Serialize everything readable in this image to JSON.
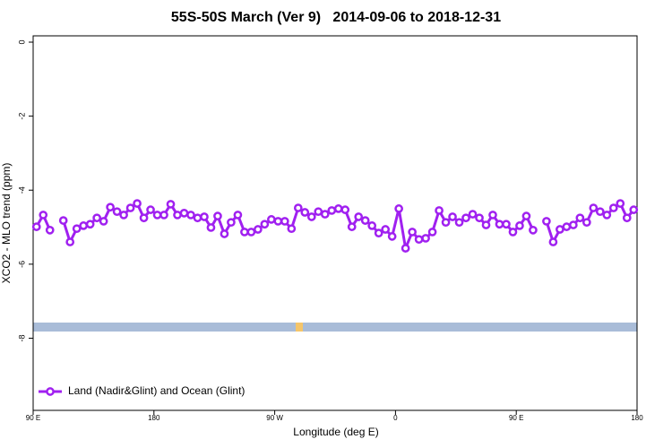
{
  "chart_data": {
    "type": "line",
    "title": "55S-50S March (Ver 9)   2014-09-06 to 2018-12-31",
    "x_label": "Longitude (deg E)",
    "y_label": "XCO2 - MLO trend (ppm)",
    "xlim": [
      90,
      540
    ],
    "ylim": [
      -9.95,
      0.17
    ],
    "xticks": [
      {
        "value": 90,
        "label": "90 E"
      },
      180,
      {
        "value": 270,
        "label": "90 W"
      },
      {
        "value": 360,
        "label": "0"
      },
      {
        "value": 450,
        "label": "90 E"
      },
      {
        "value": 540,
        "label": "180"
      }
    ],
    "yticks": [
      0,
      -2,
      -4,
      -6,
      -8
    ],
    "legend": "bottom-left",
    "x": [
      92.5,
      97.5,
      102.5,
      107.5,
      112.5,
      117.5,
      122.5,
      127.5,
      132.5,
      137.5,
      142.5,
      147.5,
      152.5,
      157.5,
      162.5,
      167.5,
      172.5,
      177.5,
      182.5,
      187.5,
      192.5,
      197.5,
      202.5,
      207.5,
      212.5,
      217.5,
      222.5,
      227.5,
      232.5,
      237.5,
      242.5,
      247.5,
      252.5,
      257.5,
      262.5,
      267.5,
      272.5,
      277.5,
      282.5,
      287.5,
      292.5,
      297.5,
      302.5,
      307.5,
      312.5,
      317.5,
      322.5,
      327.5,
      332.5,
      337.5,
      342.5,
      347.5,
      352.5,
      357.5,
      362.5,
      367.5,
      372.5,
      377.5,
      382.5,
      387.5,
      392.5,
      397.5,
      402.5,
      407.5,
      412.5,
      417.5,
      422.5,
      427.5,
      432.5,
      437.5,
      442.5,
      447.5,
      452.5,
      457.5,
      462.5,
      467.5,
      472.5,
      477.5,
      482.5,
      487.5,
      492.5,
      497.5,
      502.5,
      507.5,
      512.5,
      517.5,
      522.5,
      527.5,
      532.5,
      537.5
    ],
    "series": [
      {
        "name": "Land (Nadir&Glint) and Ocean (Glint)",
        "color": "#a020f0",
        "values": [
          -4.99,
          -4.67,
          -5.08,
          null,
          -4.82,
          -5.4,
          -5.04,
          -4.96,
          -4.92,
          -4.75,
          -4.84,
          -4.46,
          -4.58,
          -4.67,
          -4.48,
          -4.36,
          -4.75,
          -4.53,
          -4.67,
          -4.67,
          -4.38,
          -4.67,
          -4.62,
          -4.67,
          -4.75,
          -4.72,
          -5.01,
          -4.7,
          -5.18,
          -4.87,
          -4.67,
          -5.13,
          -5.13,
          -5.06,
          -4.92,
          -4.79,
          -4.84,
          -4.84,
          -5.04,
          -4.48,
          -4.6,
          -4.72,
          -4.58,
          -4.65,
          -4.55,
          -4.5,
          -4.53,
          -4.99,
          -4.72,
          -4.82,
          -4.96,
          -5.16,
          -5.06,
          -5.25,
          -4.5,
          -5.57,
          -5.13,
          -5.33,
          -5.3,
          -5.13,
          -4.55,
          -4.87,
          -4.72,
          -4.87,
          -4.75,
          -4.65,
          -4.75,
          -4.94,
          -4.67,
          -4.92,
          -4.92,
          -5.13,
          -4.96,
          -4.7,
          -5.08,
          null,
          -4.84,
          -5.4,
          -5.06,
          -4.99,
          -4.94,
          -4.75,
          -4.87,
          -4.48,
          -4.58,
          -4.67,
          -4.48,
          -4.36,
          -4.75,
          -4.53
        ]
      }
    ]
  }
}
